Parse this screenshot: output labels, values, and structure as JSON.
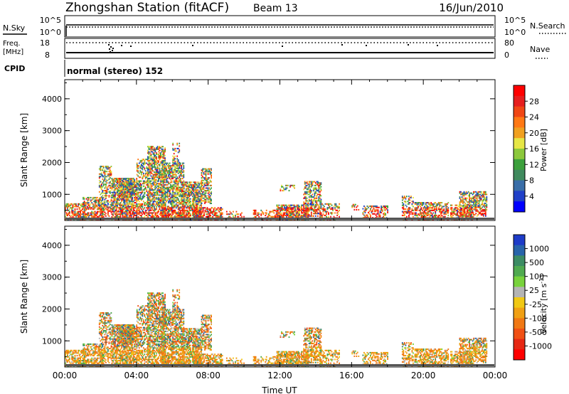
{
  "header": {
    "title": "Zhongshan Station (fitACF)",
    "beam": "Beam 13",
    "date": "16/Jun/2010"
  },
  "top_panel": {
    "left_label": "N.Sky",
    "right_label": "N.Search",
    "tick_high": "10^5",
    "tick_low": "10^0",
    "right_tick_high": "10^5",
    "right_tick_low": "10^0"
  },
  "freq_panel": {
    "left_label_line1": "Freq.",
    "left_label_line2": "[MHz]",
    "right_label": "Nave",
    "tick_high": "18",
    "tick_low": "8",
    "right_tick_high": "80",
    "right_tick_low": "0"
  },
  "cpid": {
    "label": "CPID",
    "text": "normal (stereo) 152"
  },
  "chart_data": [
    {
      "type": "heatmap",
      "name": "power",
      "ylabel": "Slant Range [km]",
      "yticks": [
        "1000",
        "2000",
        "3000",
        "4000"
      ],
      "ylim": [
        180,
        4600
      ],
      "xlim": [
        0,
        24
      ],
      "xticks": [
        "00:00",
        "04:00",
        "08:00",
        "12:00",
        "16:00",
        "20:00",
        "00:00"
      ],
      "colorbar": {
        "label": "Power [dB]",
        "ticks": [
          "4",
          "8",
          "12",
          "16",
          "20",
          "24",
          "28"
        ],
        "colors": [
          "#0000ff",
          "#2040c8",
          "#3a6ea8",
          "#408a5e",
          "#3ca03c",
          "#8cc83c",
          "#e6e646",
          "#f0a020",
          "#ff7814",
          "#f04614",
          "#e61e1e",
          "#ff0000"
        ]
      }
    },
    {
      "type": "heatmap",
      "name": "velocity",
      "ylabel": "Slant Range [km]",
      "yticks": [
        "1000",
        "2000",
        "3000",
        "4000"
      ],
      "ylim": [
        180,
        4600
      ],
      "xlim": [
        0,
        24
      ],
      "xticks": [
        "00:00",
        "04:00",
        "08:00",
        "12:00",
        "16:00",
        "20:00",
        "00:00"
      ],
      "xlabel": "Time UT",
      "colorbar": {
        "label": "Velocity [m s^-1]",
        "ticks": [
          "1000",
          "500",
          "100",
          "25",
          "-25",
          "-100",
          "-500",
          "-1000"
        ],
        "colors": [
          "#1e3cc8",
          "#2864aa",
          "#3c8c64",
          "#50aa50",
          "#78d23c",
          "#b4b4b4",
          "#f0c814",
          "#f0a014",
          "#f07814",
          "#f05014",
          "#e62814",
          "#ff0000"
        ]
      }
    }
  ]
}
